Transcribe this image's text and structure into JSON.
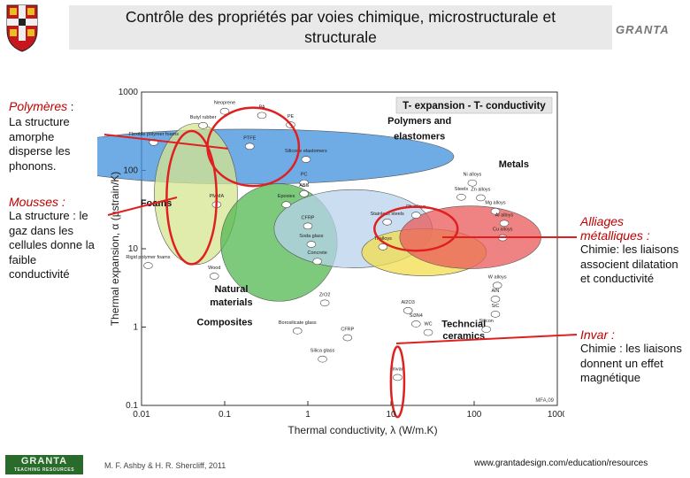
{
  "slide": {
    "title_line1": "Contrôle des propriétés par voies chimique, microstructurale et",
    "title_line2": "structurale",
    "logo_top": "GRANTA",
    "left_panels": [
      {
        "title": "Polymères",
        "suffix": " :",
        "text": "La structure amorphe disperse les phonons."
      },
      {
        "title": "Mousses :",
        "suffix": "",
        "text": "La structure : le gaz dans les cellules donne la faible conductivité"
      }
    ],
    "right_panels": [
      {
        "title": "Alliages métalliques :",
        "text": "Chimie: les liaisons associent dilatation et conductivité"
      },
      {
        "title": "Invar :",
        "text": "Chimie : les liaisons donnent un effet magnétique"
      }
    ],
    "footer": {
      "logo": "GRANTA",
      "logo_sub": "TEACHING RESOURCES",
      "authors": "M. F. Ashby & H. R. Shercliff, 2011",
      "url": "www.grantadesign.com/education/resources"
    }
  },
  "chart_data": {
    "type": "scatter",
    "title": "T- expansion - T- conductivity",
    "xlabel": "Thermal conductivity, λ  (W/m.K)",
    "ylabel": "Thermal expansion, α  (µstrain/K)",
    "x_scale": "log",
    "y_scale": "log",
    "xlim": [
      0.01,
      1000
    ],
    "ylim": [
      0.1,
      1000
    ],
    "x_ticks": [
      "0.01",
      "0.1",
      "1",
      "10",
      "100",
      "1000"
    ],
    "y_ticks": [
      "0.1",
      "1",
      "10",
      "100",
      "1000"
    ],
    "code": "MFA,09",
    "families": [
      {
        "name": "Polymers and elastomers",
        "color": "#3f8fdb",
        "x": 0.18,
        "y": 150,
        "lx": 2.5,
        "ly": 0.35
      },
      {
        "name": "Foams",
        "color": "#d6e68f",
        "x": 0.045,
        "y": 50,
        "lx": 0.5,
        "ly": 0.9
      },
      {
        "name": "Natural materials",
        "color": "#52b852",
        "x": 0.45,
        "y": 12,
        "lx": 0.7,
        "ly": 0.75
      },
      {
        "name": "Composites",
        "color": "#b8d2ec",
        "x": 3.5,
        "y": 18,
        "lx": 0.95,
        "ly": 0.5
      },
      {
        "name": "Technical ceramics",
        "color": "#f3dd4c",
        "x": 25,
        "y": 9,
        "lx": 0.75,
        "ly": 0.3
      },
      {
        "name": "Metals",
        "color": "#ea5a5a",
        "x": 90,
        "y": 14,
        "lx": 0.85,
        "ly": 0.4
      }
    ],
    "family_labels": [
      {
        "text": "Polymers and",
        "x": 22,
        "y": 390
      },
      {
        "text": "elastomers",
        "x": 22,
        "y": 250
      },
      {
        "text": "Foams",
        "x": 0.015,
        "y": 35
      },
      {
        "text": "Natural",
        "x": 0.12,
        "y": 2.8
      },
      {
        "text": "materials",
        "x": 0.12,
        "y": 1.9
      },
      {
        "text": "Composites",
        "x": 0.1,
        "y": 1.05
      },
      {
        "text": "Metals",
        "x": 300,
        "y": 110
      },
      {
        "text": "Techncial",
        "x": 75,
        "y": 1.0
      },
      {
        "text": "ceramics",
        "x": 75,
        "y": 0.7
      }
    ],
    "materials": [
      {
        "name": "Neoprene",
        "x": 0.1,
        "y": 700
      },
      {
        "name": "Butyl rubber",
        "x": 0.055,
        "y": 460
      },
      {
        "name": "Flexible polymer foams",
        "x": 0.014,
        "y": 280
      },
      {
        "name": "PA",
        "x": 0.28,
        "y": 620
      },
      {
        "name": "PE",
        "x": 0.62,
        "y": 470
      },
      {
        "name": "PTFE",
        "x": 0.2,
        "y": 250
      },
      {
        "name": "Silicone elastomers",
        "x": 0.95,
        "y": 170
      },
      {
        "name": "PC",
        "x": 0.9,
        "y": 85
      },
      {
        "name": "ABS",
        "x": 0.9,
        "y": 62
      },
      {
        "name": "PMMA",
        "x": 0.08,
        "y": 45
      },
      {
        "name": "Epoxies",
        "x": 0.55,
        "y": 45
      },
      {
        "name": "Rigid polymer foams",
        "x": 0.012,
        "y": 7.5
      },
      {
        "name": "Wood",
        "x": 0.075,
        "y": 5.5
      },
      {
        "name": "CFRP",
        "x": 1.0,
        "y": 24
      },
      {
        "name": "Soda glass",
        "x": 1.1,
        "y": 14
      },
      {
        "name": "Concrete",
        "x": 1.3,
        "y": 8.5
      },
      {
        "name": "ZrO2",
        "x": 1.6,
        "y": 2.5
      },
      {
        "name": "Borosilicate glass",
        "x": 0.75,
        "y": 1.1
      },
      {
        "name": "Silica glass",
        "x": 1.5,
        "y": 0.48
      },
      {
        "name": "Invar",
        "x": 12,
        "y": 0.28
      },
      {
        "name": "Stainless steels",
        "x": 9,
        "y": 27
      },
      {
        "name": "Pb alloys",
        "x": 20,
        "y": 33
      },
      {
        "name": "Ni alloys",
        "x": 95,
        "y": 85
      },
      {
        "name": "Steels",
        "x": 70,
        "y": 56
      },
      {
        "name": "Zn alloys",
        "x": 120,
        "y": 55
      },
      {
        "name": "Ti alloys",
        "x": 8,
        "y": 13
      },
      {
        "name": "Mg alloys",
        "x": 180,
        "y": 37
      },
      {
        "name": "Al alloys",
        "x": 230,
        "y": 26
      },
      {
        "name": "Cu alloys",
        "x": 220,
        "y": 17
      },
      {
        "name": "W alloys",
        "x": 190,
        "y": 4.2
      },
      {
        "name": "AlN",
        "x": 180,
        "y": 2.8
      },
      {
        "name": "SiC",
        "x": 180,
        "y": 1.8
      },
      {
        "name": "Al2O3",
        "x": 16,
        "y": 2.0
      },
      {
        "name": "Si3N4",
        "x": 20,
        "y": 1.35
      },
      {
        "name": "WC",
        "x": 28,
        "y": 1.05
      },
      {
        "name": "Silicon",
        "x": 140,
        "y": 1.15
      },
      {
        "name": "CFRP",
        "x": 3.0,
        "y": 0.9
      }
    ],
    "highlights": [
      {
        "target": "Polymers and elastomers",
        "color": "#e02020",
        "x": 0.22,
        "y": 200
      },
      {
        "target": "Foams",
        "color": "#e02020",
        "x": 0.04,
        "y": 45
      },
      {
        "target": "Metals",
        "color": "#e02020",
        "x": 20,
        "y": 18
      },
      {
        "target": "Invar",
        "color": "#e02020",
        "x": 12,
        "y": 0.2
      }
    ]
  }
}
